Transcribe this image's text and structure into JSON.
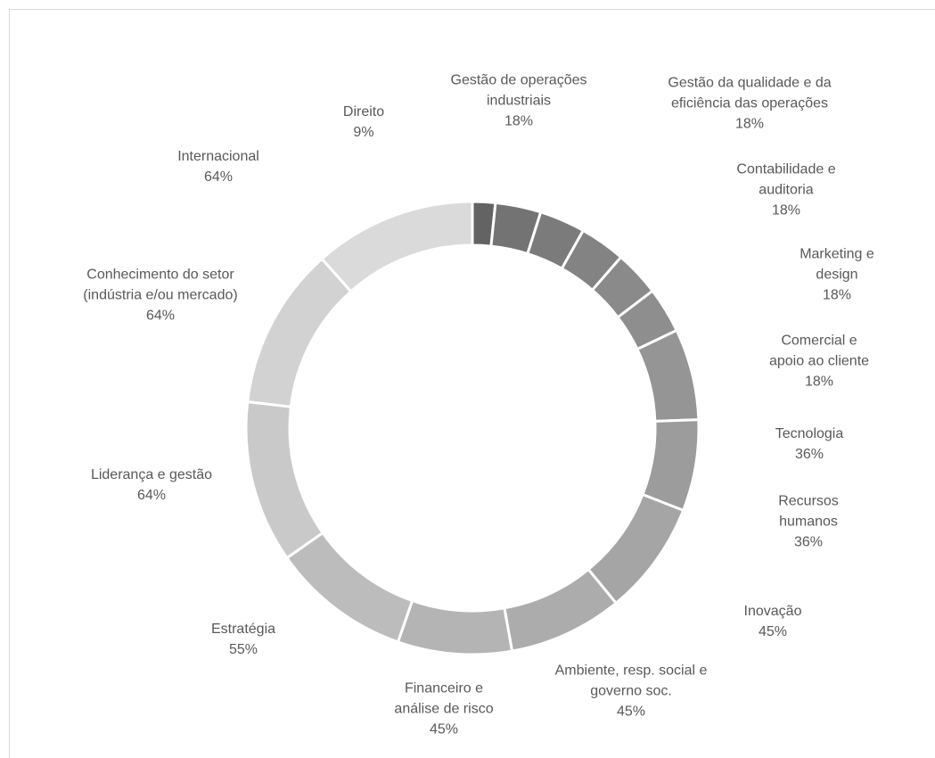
{
  "chart_data": {
    "type": "pie",
    "variant": "donut",
    "title": "",
    "legend": "none",
    "slices": [
      {
        "label": "Direito",
        "value": 9,
        "display": "9%",
        "color": "#636363"
      },
      {
        "label": "Gestão de operações industriais",
        "value": 18,
        "display": "18%",
        "color": "#737373"
      },
      {
        "label": "Gestão da qualidade e da eficiência das operações",
        "value": 18,
        "display": "18%",
        "color": "#7b7b7b"
      },
      {
        "label": "Contabilidade e auditoria",
        "value": 18,
        "display": "18%",
        "color": "#838383"
      },
      {
        "label": "Marketing e design",
        "value": 18,
        "display": "18%",
        "color": "#8a8a8a"
      },
      {
        "label": "Comercial e apoio ao cliente",
        "value": 18,
        "display": "18%",
        "color": "#8e8e8e"
      },
      {
        "label": "Tecnologia",
        "value": 36,
        "display": "36%",
        "color": "#959595"
      },
      {
        "label": "Recursos humanos",
        "value": 36,
        "display": "36%",
        "color": "#9c9c9c"
      },
      {
        "label": "Inovação",
        "value": 45,
        "display": "45%",
        "color": "#a5a5a5"
      },
      {
        "label": "Ambiente, resp. social e governo soc.",
        "value": 45,
        "display": "45%",
        "color": "#acacac"
      },
      {
        "label": "Financeiro e análise de risco",
        "value": 45,
        "display": "45%",
        "color": "#b4b4b4"
      },
      {
        "label": "Estratégia",
        "value": 55,
        "display": "55%",
        "color": "#bcbcbc"
      },
      {
        "label": "Liderança e gestão",
        "value": 64,
        "display": "64%",
        "color": "#c9c9c9"
      },
      {
        "label": "Conhecimento do setor (indústria e/ou mercado)",
        "value": 64,
        "display": "64%",
        "color": "#d2d2d2"
      },
      {
        "label": "Internacional",
        "value": 64,
        "display": "64%",
        "color": "#dadada"
      }
    ],
    "label_lines": [
      [
        "Direito"
      ],
      [
        "Gestão de operações",
        "industriais"
      ],
      [
        "Gestão da qualidade e da",
        "eficiência das operações"
      ],
      [
        "Contabilidade e",
        "auditoria"
      ],
      [
        "Marketing e",
        "design"
      ],
      [
        "Comercial e",
        "apoio ao cliente"
      ],
      [
        "Tecnologia"
      ],
      [
        "Recursos",
        "humanos"
      ],
      [
        "Inovação"
      ],
      [
        "Ambiente, resp. social e",
        "governo soc."
      ],
      [
        "Financeiro e",
        "análise de risco"
      ],
      [
        "Estratégia"
      ],
      [
        "Liderança e gestão"
      ],
      [
        "Conhecimento do setor",
        "(indústria e/ou mercado)"
      ],
      [
        "Internacional"
      ]
    ]
  }
}
